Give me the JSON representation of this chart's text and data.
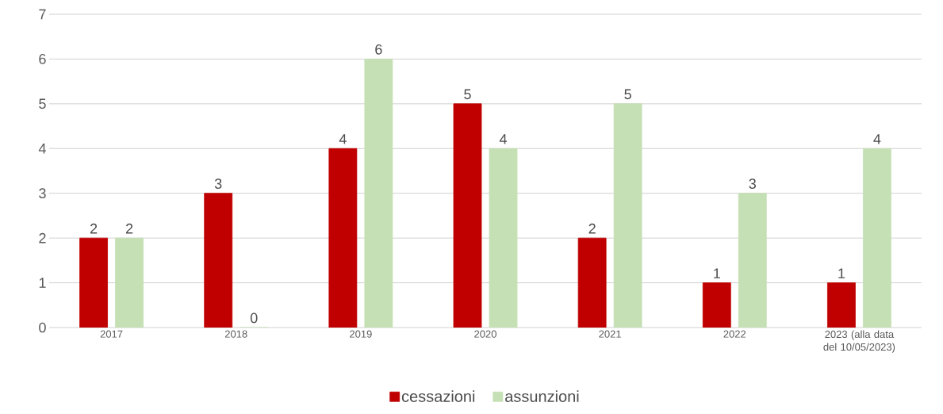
{
  "chart_data": {
    "type": "bar",
    "categories": [
      "2017",
      "2018",
      "2019",
      "2020",
      "2021",
      "2022",
      "2023 (alla data del 10/05/2023)"
    ],
    "series": [
      {
        "name": "cessazioni",
        "color": "#c00000",
        "values": [
          2,
          3,
          4,
          5,
          2,
          1,
          1
        ]
      },
      {
        "name": "assunzioni",
        "color": "#c5e0b4",
        "values": [
          2,
          0,
          6,
          4,
          5,
          3,
          4
        ]
      }
    ],
    "ylim": [
      0,
      7
    ],
    "yticks": [
      0,
      1,
      2,
      3,
      4,
      5,
      6,
      7
    ],
    "grid": "y",
    "legend": "bottom",
    "data_labels": true
  }
}
